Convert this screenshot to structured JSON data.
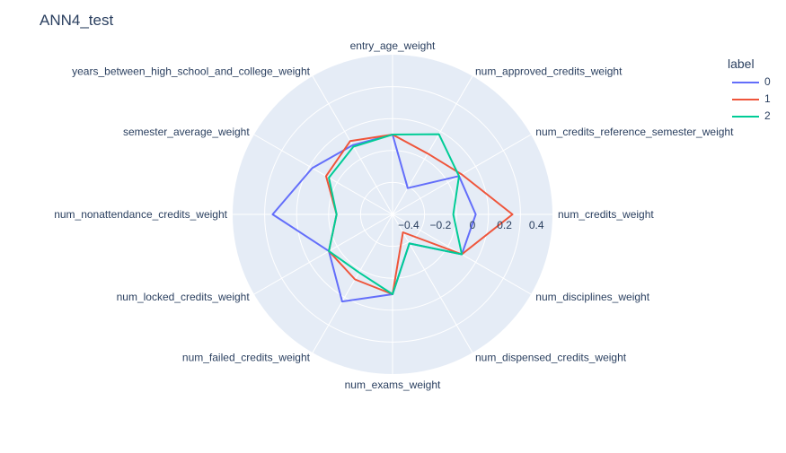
{
  "chart_data": {
    "type": "line",
    "subtype": "polar",
    "title": "ANN4_test",
    "legend_title": "label",
    "legend_position": "top-right",
    "categories": [
      "entry_age_weight",
      "num_approved_credits_weight",
      "num_credits_reference_semester_weight",
      "num_credits_weight",
      "num_disciplines_weight",
      "num_dispensed_credits_weight",
      "num_exams_weight",
      "num_failed_credits_weight",
      "num_locked_credits_weight",
      "num_nonattendance_credits_weight",
      "semester_average_weight",
      "years_between_high_school_and_college_weight"
    ],
    "radial_range": [
      -0.5,
      0.5
    ],
    "radial_ticks": [
      -0.4,
      -0.2,
      0,
      0.2,
      0.4
    ],
    "radial_tick_labels": [
      "−0.4",
      "−0.2",
      "0",
      "0.2",
      "0.4"
    ],
    "series": [
      {
        "name": "0",
        "color": "#636efa",
        "values": [
          0.0,
          -0.31,
          -0.02,
          0.02,
          -0.0,
          -0.29,
          0.0,
          0.13,
          -0.04,
          0.25,
          0.08,
          -0.0
        ]
      },
      {
        "name": "1",
        "color": "#ef553b",
        "values": [
          0.0,
          -0.06,
          0.0,
          0.25,
          -0.0,
          -0.37,
          0.0,
          -0.03,
          -0.04,
          -0.15,
          -0.02,
          0.03
        ]
      },
      {
        "name": "2",
        "color": "#00cc96",
        "values": [
          0.0,
          0.08,
          -0.02,
          -0.12,
          -0.0,
          -0.29,
          0.0,
          -0.08,
          -0.04,
          -0.15,
          -0.04,
          -0.01
        ]
      }
    ]
  }
}
